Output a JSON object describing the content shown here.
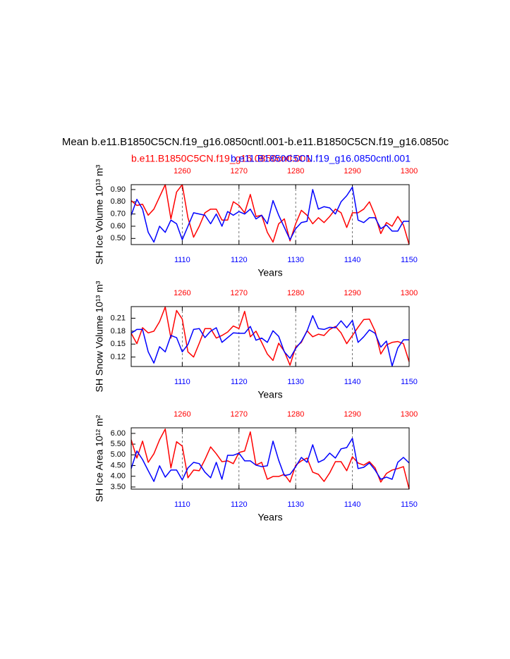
{
  "chart_data": [
    {
      "type": "line",
      "title": "Mean b.e11.B1850C5CN.f19_g16.0850cntl.001-b.e11.B1850C5CN.f19_g16.0850c",
      "ylabel": "SH Ice Volume 10¹³ m³",
      "xlabel": "Years",
      "x": [
        1101,
        1102,
        1103,
        1104,
        1105,
        1106,
        1107,
        1108,
        1109,
        1110,
        1111,
        1112,
        1113,
        1114,
        1115,
        1116,
        1117,
        1118,
        1119,
        1120,
        1121,
        1122,
        1123,
        1124,
        1125,
        1126,
        1127,
        1128,
        1129,
        1130,
        1131,
        1132,
        1133,
        1134,
        1135,
        1136,
        1137,
        1138,
        1139,
        1140,
        1141,
        1142,
        1143,
        1144,
        1145,
        1146,
        1147,
        1148,
        1149,
        1150
      ],
      "x2": [
        1251,
        1252,
        1253,
        1254,
        1255,
        1256,
        1257,
        1258,
        1259,
        1260,
        1261,
        1262,
        1263,
        1264,
        1265,
        1266,
        1267,
        1268,
        1269,
        1270,
        1271,
        1272,
        1273,
        1274,
        1275,
        1276,
        1277,
        1278,
        1279,
        1280,
        1281,
        1282,
        1283,
        1284,
        1285,
        1286,
        1287,
        1288,
        1289,
        1290,
        1291,
        1292,
        1293,
        1294,
        1295,
        1296,
        1297,
        1298,
        1299,
        1300
      ],
      "xlim": [
        1101,
        1150
      ],
      "xticks": [
        1110,
        1120,
        1130,
        1140,
        1150
      ],
      "x2lim": [
        1251,
        1300
      ],
      "x2ticks": [
        1260,
        1270,
        1280,
        1290,
        1300
      ],
      "ylim": [
        0.45,
        0.94
      ],
      "yticks": [
        {
          "value": 0.5,
          "label": "0.50"
        },
        {
          "value": 0.6,
          "label": "0.60"
        },
        {
          "value": 0.7,
          "label": "0.70"
        },
        {
          "value": 0.8,
          "label": "0.80"
        },
        {
          "value": 0.9,
          "label": "0.90"
        }
      ],
      "grid": true,
      "series": [
        {
          "name": "b.e11.B1850C5CN.f19_g16.0850cntl.001",
          "color": "#ff0000",
          "xaxis": "x2",
          "values": [
            0.81,
            0.77,
            0.78,
            0.69,
            0.74,
            0.84,
            0.94,
            0.66,
            0.88,
            0.94,
            0.67,
            0.51,
            0.6,
            0.71,
            0.74,
            0.74,
            0.65,
            0.65,
            0.8,
            0.77,
            0.71,
            0.86,
            0.68,
            0.69,
            0.55,
            0.47,
            0.62,
            0.66,
            0.48,
            0.62,
            0.73,
            0.69,
            0.62,
            0.67,
            0.63,
            0.68,
            0.74,
            0.71,
            0.59,
            0.71,
            0.71,
            0.74,
            0.8,
            0.69,
            0.54,
            0.63,
            0.6,
            0.68,
            0.61,
            0.45
          ]
        },
        {
          "name": "b.e11.B1850C5CN.f19_g16.0850cntl.001",
          "color": "#0000ff",
          "xaxis": "x",
          "values": [
            0.69,
            0.82,
            0.74,
            0.55,
            0.47,
            0.6,
            0.55,
            0.65,
            0.62,
            0.49,
            0.6,
            0.71,
            0.7,
            0.69,
            0.62,
            0.7,
            0.6,
            0.72,
            0.69,
            0.72,
            0.7,
            0.74,
            0.66,
            0.69,
            0.62,
            0.81,
            0.69,
            0.59,
            0.49,
            0.58,
            0.63,
            0.64,
            0.9,
            0.74,
            0.76,
            0.75,
            0.7,
            0.8,
            0.85,
            0.92,
            0.65,
            0.63,
            0.67,
            0.67,
            0.58,
            0.61,
            0.56,
            0.56,
            0.64,
            0.64
          ]
        }
      ]
    },
    {
      "type": "line",
      "ylabel": "SH Snow Volume 10¹³ m³",
      "xlabel": "Years",
      "x": [
        1101,
        1102,
        1103,
        1104,
        1105,
        1106,
        1107,
        1108,
        1109,
        1110,
        1111,
        1112,
        1113,
        1114,
        1115,
        1116,
        1117,
        1118,
        1119,
        1120,
        1121,
        1122,
        1123,
        1124,
        1125,
        1126,
        1127,
        1128,
        1129,
        1130,
        1131,
        1132,
        1133,
        1134,
        1135,
        1136,
        1137,
        1138,
        1139,
        1140,
        1141,
        1142,
        1143,
        1144,
        1145,
        1146,
        1147,
        1148,
        1149,
        1150
      ],
      "x2": [
        1251,
        1252,
        1253,
        1254,
        1255,
        1256,
        1257,
        1258,
        1259,
        1260,
        1261,
        1262,
        1263,
        1264,
        1265,
        1266,
        1267,
        1268,
        1269,
        1270,
        1271,
        1272,
        1273,
        1274,
        1275,
        1276,
        1277,
        1278,
        1279,
        1280,
        1281,
        1282,
        1283,
        1284,
        1285,
        1286,
        1287,
        1288,
        1289,
        1290,
        1291,
        1292,
        1293,
        1294,
        1295,
        1296,
        1297,
        1298,
        1299,
        1300
      ],
      "xlim": [
        1101,
        1150
      ],
      "xticks": [
        1110,
        1120,
        1130,
        1140,
        1150
      ],
      "x2lim": [
        1251,
        1300
      ],
      "x2ticks": [
        1260,
        1270,
        1280,
        1290,
        1300
      ],
      "ylim": [
        0.098,
        0.237
      ],
      "yticks": [
        0.12,
        0.15,
        0.18,
        0.21
      ],
      "grid": true,
      "series": [
        {
          "color": "#ff0000",
          "xaxis": "x2",
          "values": [
            0.175,
            0.151,
            0.188,
            0.176,
            0.18,
            0.202,
            0.236,
            0.164,
            0.228,
            0.208,
            0.132,
            0.12,
            0.152,
            0.186,
            0.186,
            0.164,
            0.17,
            0.178,
            0.192,
            0.186,
            0.226,
            0.167,
            0.18,
            0.154,
            0.127,
            0.112,
            0.152,
            0.133,
            0.101,
            0.143,
            0.154,
            0.181,
            0.167,
            0.173,
            0.17,
            0.184,
            0.191,
            0.176,
            0.151,
            0.17,
            0.189,
            0.207,
            0.208,
            0.18,
            0.127,
            0.148,
            0.154,
            0.156,
            0.151,
            0.109
          ]
        },
        {
          "color": "#0000ff",
          "xaxis": "x",
          "values": [
            0.175,
            0.184,
            0.184,
            0.132,
            0.106,
            0.144,
            0.132,
            0.17,
            0.165,
            0.132,
            0.149,
            0.184,
            0.186,
            0.165,
            0.18,
            0.188,
            0.154,
            0.165,
            0.176,
            0.175,
            0.175,
            0.191,
            0.159,
            0.164,
            0.154,
            0.181,
            0.168,
            0.132,
            0.117,
            0.14,
            0.156,
            0.18,
            0.216,
            0.186,
            0.184,
            0.189,
            0.188,
            0.204,
            0.188,
            0.205,
            0.154,
            0.167,
            0.183,
            0.175,
            0.143,
            0.157,
            0.099,
            0.141,
            0.16,
            0.16
          ]
        }
      ]
    },
    {
      "type": "line",
      "ylabel": "SH Ice Area 10¹² m²",
      "xlabel": "Years",
      "x": [
        1101,
        1102,
        1103,
        1104,
        1105,
        1106,
        1107,
        1108,
        1109,
        1110,
        1111,
        1112,
        1113,
        1114,
        1115,
        1116,
        1117,
        1118,
        1119,
        1120,
        1121,
        1122,
        1123,
        1124,
        1125,
        1126,
        1127,
        1128,
        1129,
        1130,
        1131,
        1132,
        1133,
        1134,
        1135,
        1136,
        1137,
        1138,
        1139,
        1140,
        1141,
        1142,
        1143,
        1144,
        1145,
        1146,
        1147,
        1148,
        1149,
        1150
      ],
      "x2": [
        1251,
        1252,
        1253,
        1254,
        1255,
        1256,
        1257,
        1258,
        1259,
        1260,
        1261,
        1262,
        1263,
        1264,
        1265,
        1266,
        1267,
        1268,
        1269,
        1270,
        1271,
        1272,
        1273,
        1274,
        1275,
        1276,
        1277,
        1278,
        1279,
        1280,
        1281,
        1282,
        1283,
        1284,
        1285,
        1286,
        1287,
        1288,
        1289,
        1290,
        1291,
        1292,
        1293,
        1294,
        1295,
        1296,
        1297,
        1298,
        1299,
        1300
      ],
      "xlim": [
        1101,
        1150
      ],
      "xticks": [
        1110,
        1120,
        1130,
        1140,
        1150
      ],
      "x2lim": [
        1251,
        1300
      ],
      "x2ticks": [
        1260,
        1270,
        1280,
        1290,
        1300
      ],
      "ylim": [
        3.4,
        6.26
      ],
      "yticks": [
        {
          "value": 3.5,
          "label": "3.50"
        },
        {
          "value": 4,
          "label": "4.00"
        },
        {
          "value": 4.5,
          "label": "4.50"
        },
        {
          "value": 5,
          "label": "5.00"
        },
        {
          "value": 5.5,
          "label": "5.50"
        },
        {
          "value": 6,
          "label": "6.00"
        }
      ],
      "grid": true,
      "series": [
        {
          "color": "#ff0000",
          "xaxis": "x2",
          "values": [
            5.7,
            4.85,
            5.64,
            4.65,
            5.05,
            5.7,
            6.2,
            4.39,
            5.61,
            5.41,
            3.93,
            4.29,
            4.26,
            4.78,
            5.37,
            5.05,
            4.68,
            4.72,
            4.59,
            5.11,
            5.18,
            6.07,
            4.52,
            4.65,
            3.86,
            3.99,
            3.99,
            4.09,
            3.73,
            4.52,
            4.72,
            4.85,
            4.19,
            4.09,
            3.76,
            4.16,
            4.68,
            4.68,
            4.26,
            4.91,
            4.62,
            4.52,
            4.68,
            4.39,
            3.73,
            4.13,
            4.29,
            4.36,
            4.45,
            3.4
          ]
        },
        {
          "color": "#0000ff",
          "xaxis": "x",
          "values": [
            4.36,
            5.18,
            4.78,
            4.26,
            3.76,
            4.49,
            3.96,
            4.29,
            4.29,
            3.83,
            4.39,
            4.65,
            4.59,
            4.19,
            3.93,
            4.65,
            3.86,
            4.98,
            4.98,
            5.08,
            4.72,
            4.72,
            4.52,
            4.45,
            4.49,
            5.64,
            4.75,
            4.03,
            4.09,
            4.45,
            4.88,
            4.65,
            5.47,
            4.65,
            4.78,
            5.08,
            4.85,
            5.28,
            5.34,
            5.77,
            4.36,
            4.42,
            4.62,
            4.29,
            3.86,
            3.96,
            3.86,
            4.65,
            4.88,
            4.62
          ]
        }
      ]
    }
  ]
}
